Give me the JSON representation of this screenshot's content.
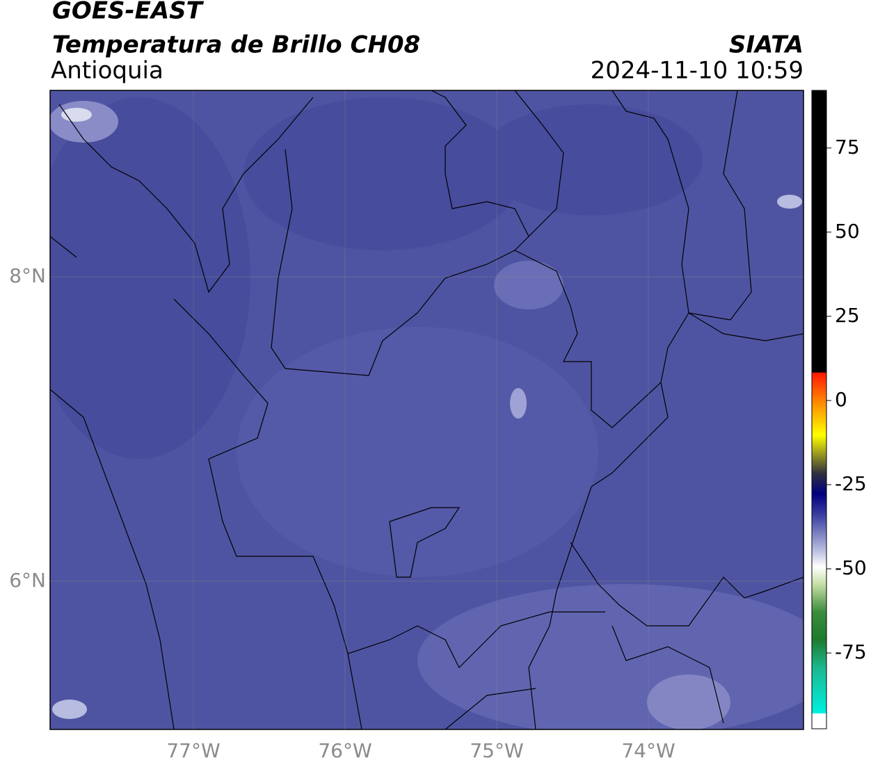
{
  "header": {
    "title": "GOES-EAST",
    "subtitle": "Temperatura de Brillo CH08",
    "region": "Antioquia",
    "source": "SIATA",
    "timestamp": "2024-11-10 10:59"
  },
  "map": {
    "xlim": [
      -77.945,
      -72.977
    ],
    "ylim": [
      5.027,
      9.224
    ],
    "xticks": [
      {
        "value": -77,
        "label": "77°W"
      },
      {
        "value": -76,
        "label": "76°W"
      },
      {
        "value": -75,
        "label": "75°W"
      },
      {
        "value": -74,
        "label": "74°W"
      }
    ],
    "yticks": [
      {
        "value": 8,
        "label": "8°N"
      },
      {
        "value": 6,
        "label": "6°N"
      }
    ]
  },
  "colorbar": {
    "lim": [
      -97.5,
      92.1
    ],
    "ticks": [
      75,
      50,
      25,
      0,
      -25,
      -50,
      -75
    ]
  }
}
